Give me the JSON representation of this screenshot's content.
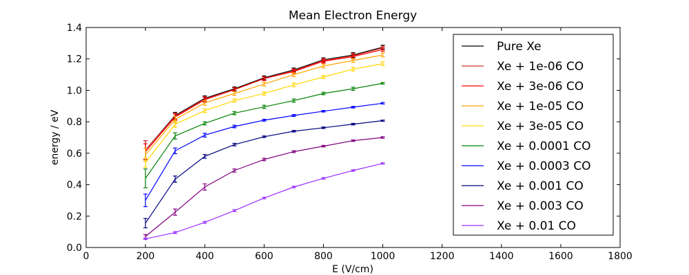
{
  "chart_data": {
    "type": "line",
    "title": "Mean Electron Energy",
    "xlabel": "E (V/cm)",
    "ylabel": "energy / eV",
    "xlim": [
      0,
      1800
    ],
    "ylim": [
      0,
      1.4
    ],
    "xticks": [
      "0",
      "200",
      "400",
      "600",
      "800",
      "1000",
      "1200",
      "1400",
      "1600",
      "1800"
    ],
    "yticks": [
      "0.0",
      "0.2",
      "0.4",
      "0.6",
      "0.8",
      "1.0",
      "1.2",
      "1.4"
    ],
    "grid": false,
    "legend_position": "top-right",
    "x": [
      200,
      300,
      400,
      500,
      600,
      700,
      800,
      900,
      1000
    ],
    "series": [
      {
        "name": "Pure Xe",
        "color": "#000000",
        "values": [
          0.62,
          0.84,
          0.95,
          1.01,
          1.08,
          1.13,
          1.195,
          1.225,
          1.275
        ],
        "errors": [
          0.06,
          0.02,
          0.015,
          0.012,
          0.012,
          0.012,
          0.012,
          0.015,
          0.012
        ]
      },
      {
        "name": "Xe + 1e-06 CO",
        "color": "#cc3333",
        "values": [
          0.62,
          0.835,
          0.945,
          1.005,
          1.075,
          1.125,
          1.19,
          1.22,
          1.27
        ],
        "errors": [
          0.06,
          0.02,
          0.015,
          0.012,
          0.012,
          0.012,
          0.012,
          0.015,
          0.012
        ]
      },
      {
        "name": "Xe + 3e-06 CO",
        "color": "#ff0000",
        "values": [
          0.61,
          0.83,
          0.94,
          1.005,
          1.075,
          1.12,
          1.185,
          1.215,
          1.26
        ],
        "errors": [
          0.05,
          0.02,
          0.015,
          0.012,
          0.012,
          0.012,
          0.012,
          0.015,
          0.012
        ]
      },
      {
        "name": "Xe + 1e-05 CO",
        "color": "#ffa500",
        "values": [
          0.59,
          0.815,
          0.92,
          0.98,
          1.04,
          1.1,
          1.155,
          1.19,
          1.225
        ],
        "errors": [
          0.04,
          0.02,
          0.015,
          0.012,
          0.012,
          0.012,
          0.012,
          0.012,
          0.012
        ]
      },
      {
        "name": "Xe + 3e-05 CO",
        "color": "#ffd700",
        "values": [
          0.54,
          0.785,
          0.87,
          0.935,
          0.98,
          1.035,
          1.085,
          1.135,
          1.17
        ],
        "errors": [
          0.03,
          0.02,
          0.012,
          0.01,
          0.01,
          0.012,
          0.01,
          0.012,
          0.012
        ]
      },
      {
        "name": "Xe + 0.0001 CO",
        "color": "#008000",
        "values": [
          0.44,
          0.71,
          0.79,
          0.855,
          0.895,
          0.935,
          0.98,
          1.01,
          1.045
        ],
        "errors": [
          0.06,
          0.02,
          0.01,
          0.01,
          0.01,
          0.01,
          0.008,
          0.01,
          0.005
        ]
      },
      {
        "name": "Xe + 0.0003 CO",
        "color": "#0000ff",
        "values": [
          0.3,
          0.615,
          0.715,
          0.77,
          0.81,
          0.84,
          0.867,
          0.893,
          0.918
        ],
        "errors": [
          0.04,
          0.018,
          0.012,
          0.008,
          0.006,
          0.006,
          0.005,
          0.005,
          0.005
        ]
      },
      {
        "name": "Xe + 0.001 CO",
        "color": "#000080",
        "values": [
          0.155,
          0.435,
          0.58,
          0.655,
          0.705,
          0.74,
          0.762,
          0.785,
          0.807
        ],
        "errors": [
          0.03,
          0.02,
          0.012,
          0.008,
          0.005,
          0.005,
          0.005,
          0.005,
          0.004
        ]
      },
      {
        "name": "Xe + 0.003 CO",
        "color": "#800080",
        "values": [
          0.07,
          0.225,
          0.385,
          0.49,
          0.56,
          0.61,
          0.645,
          0.68,
          0.7
        ],
        "errors": [
          0.012,
          0.02,
          0.02,
          0.01,
          0.008,
          0.006,
          0.005,
          0.005,
          0.005
        ]
      },
      {
        "name": "Xe + 0.01 CO",
        "color": "#9b30ff",
        "values": [
          0.055,
          0.095,
          0.16,
          0.235,
          0.315,
          0.385,
          0.44,
          0.49,
          0.535
        ],
        "errors": [
          0.005,
          0.006,
          0.006,
          0.006,
          0.005,
          0.005,
          0.005,
          0.005,
          0.004
        ]
      }
    ]
  }
}
